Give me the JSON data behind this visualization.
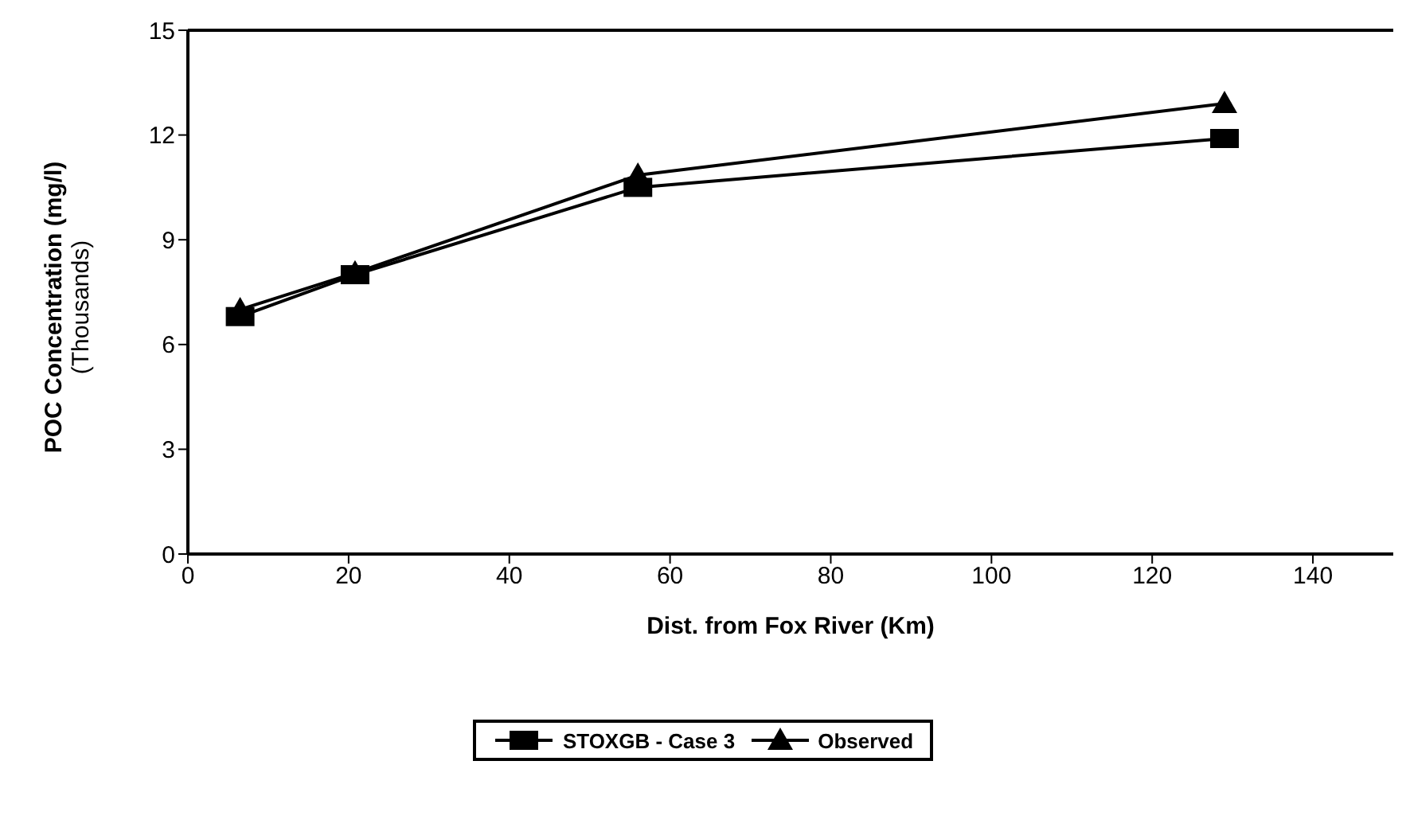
{
  "chart_data": {
    "type": "line",
    "xlabel": "Dist. from Fox River (Km)",
    "ylabel": [
      "POC Concentration (mg/l)",
      "(Thousands)"
    ],
    "xlim": [
      0,
      150
    ],
    "xticks": [
      0,
      20,
      40,
      60,
      80,
      100,
      120,
      140
    ],
    "ylim": [
      0,
      15
    ],
    "yticks": [
      0,
      3,
      6,
      9,
      12,
      15
    ],
    "x": [
      6.5,
      20.8,
      56,
      129
    ],
    "series": [
      {
        "name": "STOXGB - Case 3",
        "color": "#000000",
        "marker": "square",
        "values": [
          6.8,
          8.0,
          10.5,
          11.9
        ]
      },
      {
        "name": "Observed",
        "color": "#000000",
        "marker": "triangle",
        "values": [
          7.0,
          8.05,
          10.85,
          12.9
        ]
      }
    ],
    "grid": false,
    "legend": "bottom",
    "line_style": "solid"
  }
}
